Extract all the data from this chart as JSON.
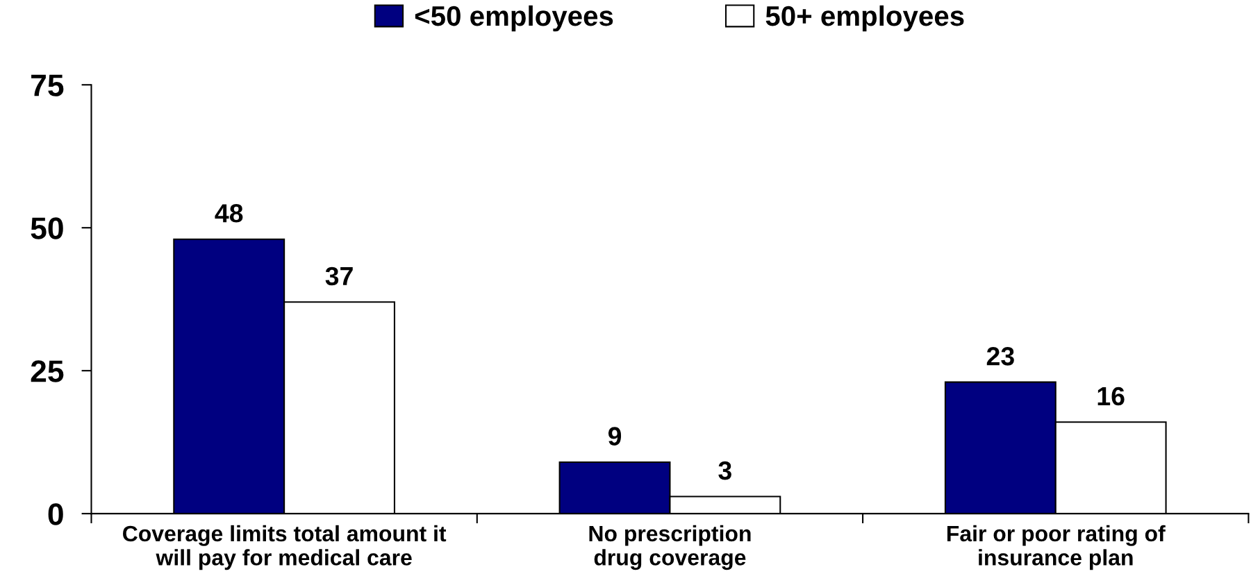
{
  "chart_data": {
    "type": "bar",
    "categories": [
      "Coverage limits total amount it\nwill pay for medical care",
      "No prescription\ndrug coverage",
      "Fair or poor rating of\ninsurance plan"
    ],
    "series": [
      {
        "name": "<50 employees",
        "color": "#000080",
        "values": [
          48,
          9,
          23
        ]
      },
      {
        "name": "50+ employees",
        "color": "#ffffff",
        "values": [
          37,
          3,
          16
        ]
      }
    ],
    "ylim": [
      0,
      75
    ],
    "yticks": [
      0,
      25,
      50,
      75
    ],
    "grid": false,
    "legend": "top",
    "data_labels": true
  }
}
